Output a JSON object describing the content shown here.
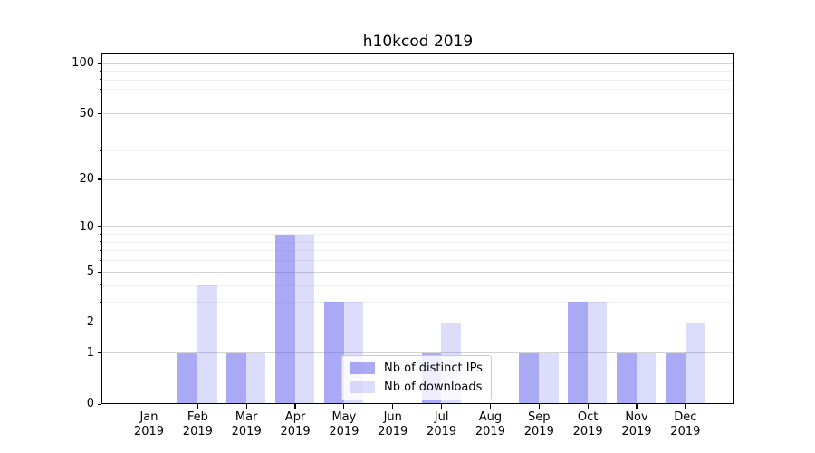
{
  "title": "h10kcod 2019",
  "chart_data": {
    "type": "bar",
    "title": "h10kcod 2019",
    "categories": [
      "Jan 2019",
      "Feb 2019",
      "Mar 2019",
      "Apr 2019",
      "May 2019",
      "Jun 2019",
      "Jul 2019",
      "Aug 2019",
      "Sep 2019",
      "Oct 2019",
      "Nov 2019",
      "Dec 2019"
    ],
    "series": [
      {
        "name": "Nb of distinct IPs",
        "color": "#6666ee",
        "alpha": 0.56,
        "solid_color": "#a7a7f7",
        "values": [
          0,
          1,
          1,
          9,
          3,
          0,
          1,
          0,
          1,
          3,
          1,
          1
        ]
      },
      {
        "name": "Nb of downloads",
        "color": "#6666ee",
        "alpha": 0.23,
        "solid_color": "#dcdcf8",
        "values": [
          0,
          4,
          1,
          9,
          3,
          0,
          2,
          0,
          1,
          3,
          1,
          2
        ]
      }
    ],
    "yscale": "log1p",
    "ylim": [
      0,
      100
    ],
    "yticks": [
      0,
      1,
      2,
      5,
      10,
      20,
      50,
      100
    ],
    "yticks_minor": [
      3,
      4,
      6,
      7,
      8,
      9,
      30,
      40,
      60,
      70,
      80,
      90
    ],
    "grid": true,
    "legend_position": "lower-center"
  },
  "colors": {
    "grid_major": "#d2d2d2",
    "grid_minor": "#efefef",
    "axis": "#000000",
    "background": "#ffffff",
    "legend_border": "#cccccc"
  }
}
